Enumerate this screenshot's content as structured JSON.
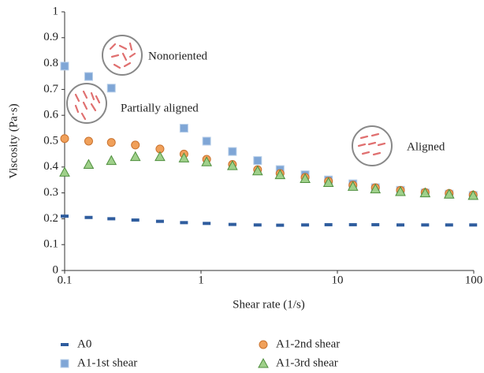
{
  "chart_data": {
    "type": "scatter",
    "y_label": "Viscosity (Pa·s)",
    "x_label": "Shear rate (1/s)",
    "x": [
      0.1,
      0.15,
      0.22,
      0.33,
      0.5,
      0.75,
      1.1,
      1.7,
      2.6,
      3.8,
      5.8,
      8.6,
      13,
      19,
      29,
      44,
      66,
      99
    ],
    "xlim": [
      0.1,
      100
    ],
    "xticks": [
      0.1,
      1,
      10,
      100
    ],
    "xscale": "log",
    "ylim": [
      0,
      1
    ],
    "yticks": [
      0,
      0.1,
      0.2,
      0.3,
      0.4,
      0.5,
      0.6,
      0.7,
      0.8,
      0.9,
      1
    ],
    "series": [
      {
        "name": "A0",
        "color": "#2f5d9e",
        "marker": "dash",
        "values": [
          0.21,
          0.205,
          0.2,
          0.195,
          0.19,
          0.185,
          0.182,
          0.178,
          0.176,
          0.175,
          0.176,
          0.177,
          0.177,
          0.177,
          0.176,
          0.176,
          0.176,
          0.176
        ]
      },
      {
        "name": "A1-1st shear",
        "color": "#7fa6d6",
        "marker": "square",
        "values": [
          0.79,
          0.75,
          0.705,
          null,
          null,
          0.55,
          0.5,
          0.46,
          0.425,
          0.39,
          0.37,
          0.35,
          0.335,
          0.32,
          0.31,
          0.3,
          0.295,
          0.29
        ]
      },
      {
        "name": "A1-2nd shear",
        "color": "#f0a05a",
        "marker": "circle",
        "values": [
          0.51,
          0.5,
          0.495,
          0.485,
          0.47,
          0.45,
          0.43,
          0.41,
          0.39,
          0.375,
          0.36,
          0.345,
          0.33,
          0.32,
          0.31,
          0.302,
          0.298,
          0.292
        ]
      },
      {
        "name": "A1-3rd shear",
        "color": "#9fd08a",
        "marker": "triangle",
        "values": [
          0.38,
          0.41,
          0.425,
          0.44,
          0.44,
          0.435,
          0.42,
          0.405,
          0.385,
          0.37,
          0.355,
          0.34,
          0.325,
          0.315,
          0.305,
          0.3,
          0.295,
          0.29
        ]
      }
    ],
    "annotations": [
      "Nonoriented",
      "Partially aligned",
      "Aligned"
    ]
  }
}
